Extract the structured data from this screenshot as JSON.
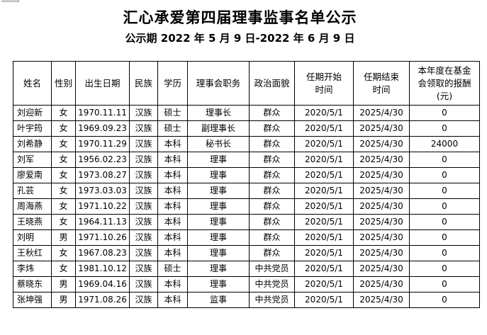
{
  "page": {
    "title": "汇心承爱第四届理事监事名单公示",
    "subtitle": "公示期 2022 年 5 月 9 日-2022 年 6 月 9 日"
  },
  "table": {
    "headers": [
      "姓名",
      "性别",
      "出生日期",
      "民族",
      "学历",
      "理事会职务",
      "政治面貌",
      "任期开始\n时间",
      "任期结束\n时间",
      "本年度在基金\n会领取的报酬\n(元)"
    ],
    "rows": [
      [
        "刘迎新",
        "女",
        "1970.11.11",
        "汉族",
        "硕士",
        "理事长",
        "群众",
        "2020/5/1",
        "2025/4/30",
        "0"
      ],
      [
        "叶宇筠",
        "女",
        "1969.09.23",
        "汉族",
        "硕士",
        "副理事长",
        "群众",
        "2020/5/1",
        "2025/4/30",
        "0"
      ],
      [
        "刘希静",
        "女",
        "1970.11.29",
        "汉族",
        "本科",
        "秘书长",
        "群众",
        "2020/5/1",
        "2025/4/30",
        "24000"
      ],
      [
        "刘军",
        "女",
        "1956.02.23",
        "汉族",
        "本科",
        "理事",
        "群众",
        "2020/5/1",
        "2025/4/30",
        "0"
      ],
      [
        "廖爱南",
        "女",
        "1973.08.27",
        "汉族",
        "本科",
        "理事",
        "群众",
        "2020/5/1",
        "2025/4/30",
        "0"
      ],
      [
        "孔芸",
        "女",
        "1973.03.03",
        "汉族",
        "本科",
        "理事",
        "群众",
        "2020/5/1",
        "2025/4/30",
        "0"
      ],
      [
        "周海燕",
        "女",
        "1971.10.22",
        "汉族",
        "本科",
        "理事",
        "群众",
        "2020/5/1",
        "2025/4/30",
        "0"
      ],
      [
        "王晓燕",
        "女",
        "1964.11.13",
        "汉族",
        "本科",
        "理事",
        "群众",
        "2020/5/1",
        "2025/4/30",
        "0"
      ],
      [
        "刘明",
        "男",
        "1971.10.26",
        "汉族",
        "本科",
        "理事",
        "群众",
        "2020/5/1",
        "2025/4/30",
        "0"
      ],
      [
        "王秋红",
        "女",
        "1967.08.23",
        "汉族",
        "本科",
        "理事",
        "群众",
        "2020/5/1",
        "2025/4/30",
        "0"
      ],
      [
        "李炜",
        "女",
        "1981.10.12",
        "汉族",
        "硕士",
        "理事",
        "中共党员",
        "2020/5/1",
        "2025/4/30",
        "0"
      ],
      [
        "蔡晓东",
        "男",
        "1969.04.16",
        "汉族",
        "本科",
        "理事",
        "中共党员",
        "2020/5/1",
        "2025/4/30",
        "0"
      ],
      [
        "张坤强",
        "男",
        "1971.08.26",
        "汉族",
        "本科",
        "监事",
        "中共党员",
        "2020/5/1",
        "2025/4/30",
        "0"
      ]
    ]
  }
}
